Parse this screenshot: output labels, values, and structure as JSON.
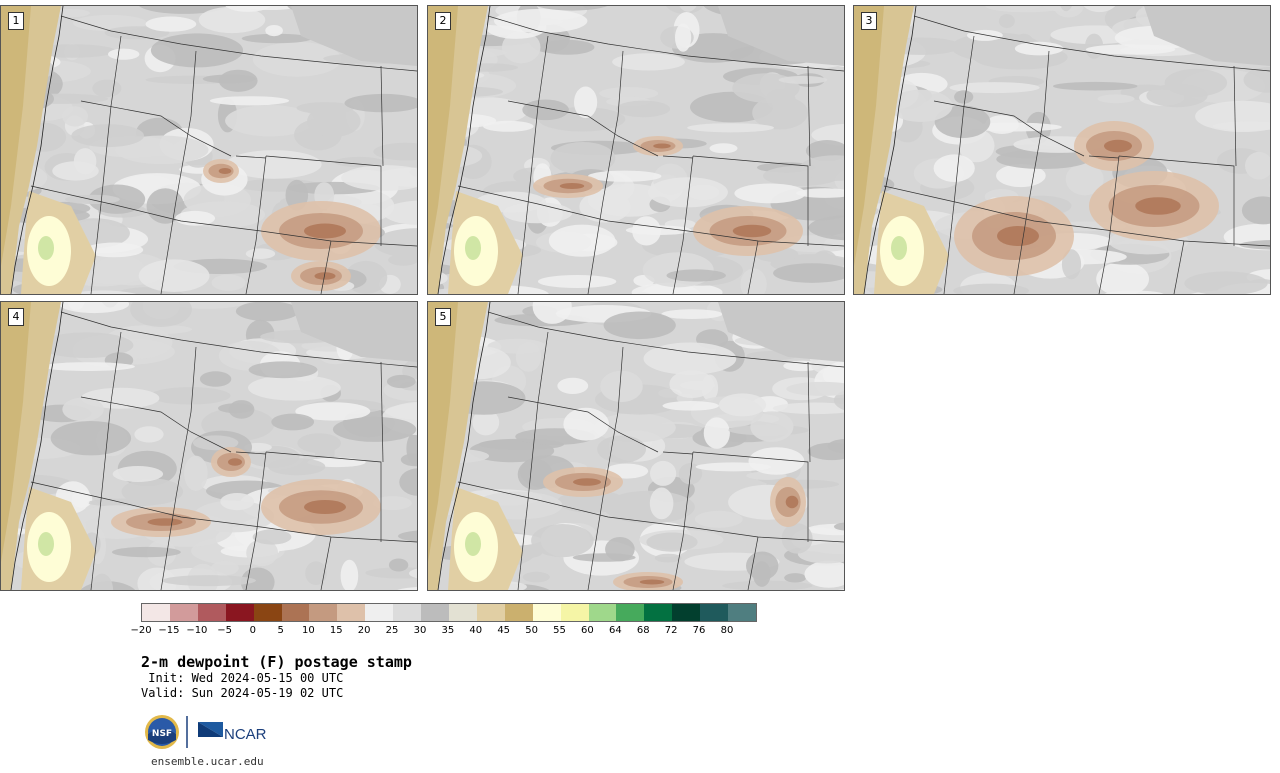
{
  "panels": [
    {
      "number": "1"
    },
    {
      "number": "2"
    },
    {
      "number": "3"
    },
    {
      "number": "4"
    },
    {
      "number": "5"
    }
  ],
  "colorbar": {
    "colors": [
      "#f3e7e6",
      "#d29b9b",
      "#b05a5e",
      "#8a1620",
      "#8a4513",
      "#ac7354",
      "#c49a80",
      "#dec1aa",
      "#efefef",
      "#dcdcdc",
      "#bcbcbc",
      "#e3e1d3",
      "#e1cfa4",
      "#cbb06e",
      "#fefdd6",
      "#f5f5a6",
      "#9fd88b",
      "#46aa5c",
      "#037141",
      "#023f2e",
      "#1f5a5c",
      "#4f7e80"
    ],
    "tick_labels": [
      "−20",
      "−15",
      "−10",
      "−5",
      "0",
      "5",
      "10",
      "15",
      "20",
      "25",
      "30",
      "35",
      "40",
      "45",
      "50",
      "55",
      "60",
      "64",
      "68",
      "72",
      "76",
      "80"
    ]
  },
  "title": "2-m dewpoint (F) postage stamp",
  "init": " Init: Wed 2024-05-15 00 UTC",
  "valid": "Valid: Sun 2024-05-19 02 UTC",
  "logos": {
    "nsf": "NSF",
    "ncar": "NCAR"
  },
  "site": "ensemble.ucar.edu"
}
